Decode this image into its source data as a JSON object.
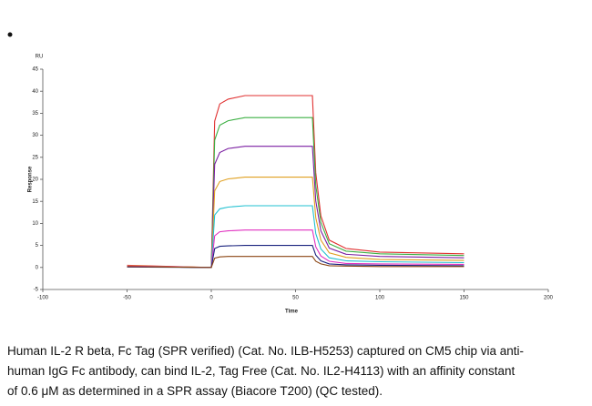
{
  "chart_data": {
    "type": "line",
    "y_unit": "RU",
    "ylabel": "Response",
    "xlabel": "Time",
    "xlim": [
      -100,
      200
    ],
    "xticks": [
      -100,
      -50,
      0,
      50,
      100,
      150,
      200
    ],
    "ylim": [
      -5,
      45
    ],
    "yticks": [
      -5,
      0,
      5,
      10,
      15,
      20,
      25,
      30,
      35,
      40,
      45
    ],
    "x": [
      -50,
      -1,
      0,
      2,
      5,
      10,
      20,
      40,
      59,
      60,
      62,
      65,
      70,
      80,
      100,
      150
    ],
    "series": [
      {
        "color": "#e03030",
        "values": [
          0.5,
          0,
          0,
          33.2,
          37.1,
          38.2,
          39,
          39,
          39,
          39,
          21.5,
          11.7,
          6.2,
          4.3,
          3.5,
          3.1
        ]
      },
      {
        "color": "#3cb043",
        "values": [
          0.3,
          0,
          0,
          28.9,
          32.3,
          33.3,
          34,
          34,
          34,
          34,
          18.7,
          10.2,
          5.4,
          3.7,
          3.1,
          2.7
        ]
      },
      {
        "color": "#7b1fa2",
        "values": [
          0.2,
          0,
          0,
          23.4,
          26.1,
          27,
          27.5,
          27.5,
          27.5,
          27.5,
          15.1,
          8.3,
          4.4,
          3,
          2.5,
          2.2
        ]
      },
      {
        "color": "#e0a020",
        "values": [
          0.4,
          0,
          0,
          17.4,
          19.5,
          20.1,
          20.5,
          20.5,
          20.5,
          20.5,
          11.3,
          6.2,
          3.3,
          2.3,
          1.8,
          1.6
        ]
      },
      {
        "color": "#20c0d0",
        "values": [
          0.2,
          0,
          0,
          11.9,
          13.3,
          13.7,
          14,
          14,
          14,
          14,
          7.7,
          4.2,
          2.2,
          1.5,
          1.3,
          1.1
        ]
      },
      {
        "color": "#e030c0",
        "values": [
          0.3,
          0,
          0,
          7.2,
          8.1,
          8.3,
          8.5,
          8.5,
          8.5,
          8.5,
          4.7,
          2.6,
          1.4,
          0.9,
          0.8,
          0.7
        ]
      },
      {
        "color": "#1a237e",
        "values": [
          0.1,
          0,
          0,
          4.3,
          4.8,
          4.9,
          5,
          5,
          5,
          5,
          2.8,
          1.5,
          0.8,
          0.6,
          0.5,
          0.4
        ]
      },
      {
        "color": "#8b4513",
        "values": [
          0.2,
          0,
          0,
          2.1,
          2.4,
          2.5,
          2.5,
          2.5,
          2.5,
          2.5,
          1.4,
          0.8,
          0.4,
          0.3,
          0.2,
          0.2
        ]
      }
    ]
  },
  "caption": [
    "Human IL-2 R beta, Fc Tag (SPR verified) (Cat. No. ILB-H5253) captured on CM5 chip via anti-",
    "human IgG Fc antibody, can bind IL-2, Tag Free (Cat. No. IL2-H4113) with an affinity constant",
    "of 0.6 μM as determined in a SPR assay (Biacore T200) (QC tested)."
  ]
}
